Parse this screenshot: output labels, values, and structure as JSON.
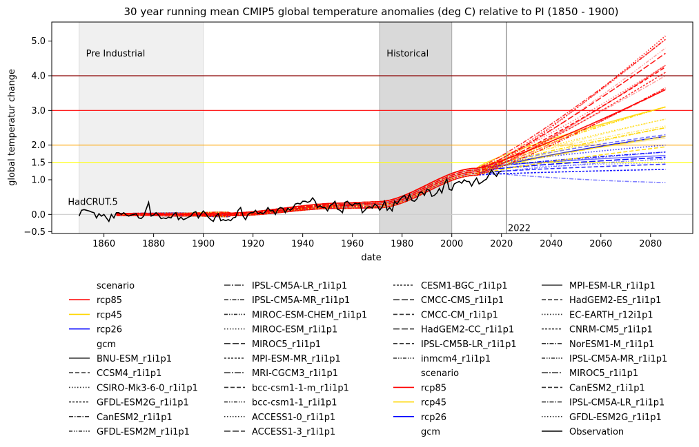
{
  "chart_data": {
    "type": "line",
    "title": "30 year running mean CMIP5 global temperature anomalies (deg C) relative to PI (1850 - 1900)",
    "xlabel": "date",
    "ylabel": "global temperatur change",
    "xlim": [
      1839,
      2097
    ],
    "ylim": [
      -0.55,
      5.55
    ],
    "xticks": [
      1860,
      1880,
      1900,
      1920,
      1940,
      1960,
      1980,
      2000,
      2020,
      2040,
      2060,
      2080
    ],
    "yticks": [
      {
        "value": -0.5,
        "label": "−0.5"
      },
      {
        "value": 0.0,
        "label": "0.0"
      },
      {
        "value": 1.0,
        "label": "1.0"
      },
      {
        "value": 1.5,
        "label": "1.5"
      },
      {
        "value": 2.0,
        "label": "2.0"
      },
      {
        "value": 3.0,
        "label": "3.0"
      },
      {
        "value": 4.0,
        "label": "4.0"
      },
      {
        "value": 5.0,
        "label": "5.0"
      }
    ],
    "grid": false,
    "shaded_periods": [
      {
        "label": "Pre Industrial",
        "start": 1850,
        "end": 1900,
        "color": "#f0f0f0"
      },
      {
        "label": "Historical",
        "start": 1971,
        "end": 2000,
        "color": "#d9d9d9"
      }
    ],
    "reference_lines": [
      {
        "value": 4.0,
        "color": "#8b0000"
      },
      {
        "value": 3.0,
        "color": "#ff0000"
      },
      {
        "value": 2.0,
        "color": "#ffa500"
      },
      {
        "value": 1.5,
        "color": "#ffff00"
      },
      {
        "value": 0.0,
        "color": "#cccccc"
      }
    ],
    "year_marker": {
      "year": 2022,
      "label": "2022",
      "color": "#ff0000"
    },
    "observation_label": "HadCRUT.5",
    "colors": {
      "rcp85": "#ff0000",
      "rcp45": "#ffd700",
      "rcp26": "#0000ff",
      "observation": "#000000"
    },
    "scenario_endpoints": {
      "x_start": 1865,
      "x_end": 2086,
      "rcp85": [
        5.25,
        5.05,
        4.95,
        4.85,
        4.6,
        4.4,
        4.25,
        4.2,
        4.15,
        3.95,
        3.75,
        3.6,
        3.5
      ],
      "rcp45": [
        3.2,
        3.1,
        3.0,
        2.8,
        2.7,
        2.6,
        2.5,
        2.45,
        2.3,
        2.15,
        2.05
      ],
      "rcp26": [
        2.35,
        2.3,
        1.9,
        1.85,
        1.75,
        1.7,
        1.65,
        1.6,
        1.5,
        1.45,
        1.4,
        0.92
      ]
    },
    "observation": [
      [
        1850,
        -0.05
      ],
      [
        1851,
        0.12
      ],
      [
        1852,
        0.14
      ],
      [
        1853,
        0.12
      ],
      [
        1854,
        0.1
      ],
      [
        1855,
        0.07
      ],
      [
        1856,
        0.05
      ],
      [
        1857,
        -0.1
      ],
      [
        1858,
        0.02
      ],
      [
        1859,
        -0.05
      ],
      [
        1860,
        0.0
      ],
      [
        1861,
        -0.1
      ],
      [
        1862,
        -0.2
      ],
      [
        1863,
        0.0
      ],
      [
        1864,
        -0.1
      ],
      [
        1865,
        0.05
      ],
      [
        1866,
        0.05
      ],
      [
        1867,
        0.0
      ],
      [
        1868,
        0.05
      ],
      [
        1869,
        -0.02
      ],
      [
        1870,
        -0.05
      ],
      [
        1871,
        -0.02
      ],
      [
        1872,
        0.0
      ],
      [
        1873,
        0.02
      ],
      [
        1874,
        -0.1
      ],
      [
        1875,
        -0.12
      ],
      [
        1876,
        -0.05
      ],
      [
        1877,
        0.15
      ],
      [
        1878,
        0.35
      ],
      [
        1879,
        -0.05
      ],
      [
        1880,
        -0.02
      ],
      [
        1881,
        0.05
      ],
      [
        1882,
        -0.02
      ],
      [
        1883,
        -0.12
      ],
      [
        1884,
        -0.1
      ],
      [
        1885,
        -0.12
      ],
      [
        1886,
        -0.08
      ],
      [
        1887,
        -0.1
      ],
      [
        1888,
        0.0
      ],
      [
        1889,
        0.05
      ],
      [
        1890,
        -0.15
      ],
      [
        1891,
        -0.08
      ],
      [
        1892,
        -0.15
      ],
      [
        1893,
        -0.12
      ],
      [
        1894,
        -0.08
      ],
      [
        1895,
        -0.05
      ],
      [
        1896,
        0.05
      ],
      [
        1897,
        0.08
      ],
      [
        1898,
        -0.1
      ],
      [
        1899,
        0.0
      ],
      [
        1900,
        0.1
      ],
      [
        1901,
        0.02
      ],
      [
        1902,
        -0.08
      ],
      [
        1903,
        -0.15
      ],
      [
        1904,
        -0.2
      ],
      [
        1905,
        -0.05
      ],
      [
        1906,
        0.02
      ],
      [
        1907,
        -0.18
      ],
      [
        1908,
        -0.15
      ],
      [
        1909,
        -0.18
      ],
      [
        1910,
        -0.15
      ],
      [
        1911,
        -0.18
      ],
      [
        1912,
        -0.1
      ],
      [
        1913,
        -0.08
      ],
      [
        1914,
        0.12
      ],
      [
        1915,
        0.2
      ],
      [
        1916,
        -0.05
      ],
      [
        1917,
        -0.15
      ],
      [
        1918,
        0.0
      ],
      [
        1919,
        0.05
      ],
      [
        1920,
        0.05
      ],
      [
        1921,
        0.12
      ],
      [
        1922,
        0.02
      ],
      [
        1923,
        0.05
      ],
      [
        1924,
        0.02
      ],
      [
        1925,
        0.08
      ],
      [
        1926,
        0.2
      ],
      [
        1927,
        0.1
      ],
      [
        1928,
        0.12
      ],
      [
        1929,
        0.0
      ],
      [
        1930,
        0.15
      ],
      [
        1931,
        0.2
      ],
      [
        1932,
        0.18
      ],
      [
        1933,
        0.05
      ],
      [
        1934,
        0.18
      ],
      [
        1935,
        0.12
      ],
      [
        1936,
        0.18
      ],
      [
        1937,
        0.3
      ],
      [
        1938,
        0.32
      ],
      [
        1939,
        0.3
      ],
      [
        1940,
        0.38
      ],
      [
        1941,
        0.38
      ],
      [
        1942,
        0.35
      ],
      [
        1943,
        0.38
      ],
      [
        1944,
        0.48
      ],
      [
        1945,
        0.38
      ],
      [
        1946,
        0.2
      ],
      [
        1947,
        0.25
      ],
      [
        1948,
        0.2
      ],
      [
        1949,
        0.2
      ],
      [
        1950,
        0.1
      ],
      [
        1951,
        0.25
      ],
      [
        1952,
        0.3
      ],
      [
        1953,
        0.38
      ],
      [
        1954,
        0.15
      ],
      [
        1955,
        0.12
      ],
      [
        1956,
        0.05
      ],
      [
        1957,
        0.35
      ],
      [
        1958,
        0.38
      ],
      [
        1959,
        0.3
      ],
      [
        1960,
        0.25
      ],
      [
        1961,
        0.32
      ],
      [
        1962,
        0.3
      ],
      [
        1963,
        0.32
      ],
      [
        1964,
        0.05
      ],
      [
        1965,
        0.12
      ],
      [
        1966,
        0.2
      ],
      [
        1967,
        0.22
      ],
      [
        1968,
        0.18
      ],
      [
        1969,
        0.3
      ],
      [
        1970,
        0.25
      ],
      [
        1971,
        0.12
      ],
      [
        1972,
        0.22
      ],
      [
        1973,
        0.38
      ],
      [
        1974,
        0.12
      ],
      [
        1975,
        0.2
      ],
      [
        1976,
        0.1
      ],
      [
        1977,
        0.38
      ],
      [
        1978,
        0.3
      ],
      [
        1979,
        0.42
      ],
      [
        1980,
        0.5
      ],
      [
        1981,
        0.55
      ],
      [
        1982,
        0.4
      ],
      [
        1983,
        0.58
      ],
      [
        1984,
        0.4
      ],
      [
        1985,
        0.38
      ],
      [
        1986,
        0.45
      ],
      [
        1987,
        0.62
      ],
      [
        1988,
        0.65
      ],
      [
        1989,
        0.55
      ],
      [
        1990,
        0.72
      ],
      [
        1991,
        0.7
      ],
      [
        1992,
        0.52
      ],
      [
        1993,
        0.55
      ],
      [
        1994,
        0.62
      ],
      [
        1995,
        0.75
      ],
      [
        1996,
        0.62
      ],
      [
        1997,
        0.88
      ],
      [
        1998,
        1.02
      ],
      [
        1999,
        0.72
      ],
      [
        2000,
        0.7
      ],
      [
        2001,
        0.88
      ],
      [
        2002,
        0.92
      ],
      [
        2003,
        0.95
      ],
      [
        2004,
        0.9
      ],
      [
        2005,
        1.0
      ],
      [
        2006,
        0.95
      ],
      [
        2007,
        0.95
      ],
      [
        2008,
        0.82
      ],
      [
        2009,
        0.95
      ],
      [
        2010,
        1.05
      ],
      [
        2011,
        0.88
      ],
      [
        2012,
        0.92
      ],
      [
        2013,
        0.98
      ],
      [
        2014,
        1.02
      ],
      [
        2015,
        1.15
      ],
      [
        2016,
        1.28
      ],
      [
        2017,
        1.18
      ],
      [
        2018,
        1.1
      ],
      [
        2019,
        1.22
      ],
      [
        2020,
        1.25
      ]
    ],
    "legend": {
      "placement": "below",
      "columns": [
        [
          {
            "label": "scenario",
            "header": true
          },
          {
            "label": "rcp85",
            "color": "#ff0000",
            "dash": "solid"
          },
          {
            "label": "rcp45",
            "color": "#ffd700",
            "dash": "solid"
          },
          {
            "label": "rcp26",
            "color": "#0000ff",
            "dash": "solid"
          },
          {
            "label": "gcm",
            "header": true
          },
          {
            "label": "BNU-ESM_r1i1p1",
            "color": "#333333",
            "dash": "solid"
          },
          {
            "label": "CCSM4_r1i1p1",
            "color": "#333333",
            "dash": "dashed"
          },
          {
            "label": "CSIRO-Mk3-6-0_r1i1p1",
            "color": "#333333",
            "dash": "dotted"
          },
          {
            "label": "GFDL-ESM2G_r1i1p1",
            "color": "#333333",
            "dash": "short"
          },
          {
            "label": "CanESM2_r1i1p1",
            "color": "#333333",
            "dash": "dashdot"
          },
          {
            "label": "GFDL-ESM2M_r1i1p1",
            "color": "#333333",
            "dash": "dashdotdot"
          }
        ],
        [
          {
            "label": "IPSL-CM5A-LR_r1i1p1",
            "color": "#333333",
            "dash": "longdashdot"
          },
          {
            "label": "IPSL-CM5A-MR_r1i1p1",
            "color": "#333333",
            "dash": "dashdot"
          },
          {
            "label": "MIROC-ESM-CHEM_r1i1p1",
            "color": "#333333",
            "dash": "dashdotdot"
          },
          {
            "label": "MIROC-ESM_r1i1p1",
            "color": "#333333",
            "dash": "dotted"
          },
          {
            "label": "MIROC5_r1i1p1",
            "color": "#333333",
            "dash": "long"
          },
          {
            "label": "MPI-ESM-MR_r1i1p1",
            "color": "#333333",
            "dash": "short"
          },
          {
            "label": "MRI-CGCM3_r1i1p1",
            "color": "#333333",
            "dash": "longdashdot"
          },
          {
            "label": "bcc-csm1-1-m_r1i1p1",
            "color": "#333333",
            "dash": "dashed"
          },
          {
            "label": "bcc-csm1-1_r1i1p1",
            "color": "#333333",
            "dash": "dashdotdot"
          },
          {
            "label": "ACCESS1-0_r1i1p1",
            "color": "#333333",
            "dash": "dotted"
          },
          {
            "label": "ACCESS1-3_r1i1p1",
            "color": "#333333",
            "dash": "long"
          }
        ],
        [
          {
            "label": "CESM1-BGC_r1i1p1",
            "color": "#333333",
            "dash": "short"
          },
          {
            "label": "CMCC-CMS_r1i1p1",
            "color": "#333333",
            "dash": "long"
          },
          {
            "label": "CMCC-CM_r1i1p1",
            "color": "#333333",
            "dash": "dashed"
          },
          {
            "label": "HadGEM2-CC_r1i1p1",
            "color": "#333333",
            "dash": "long"
          },
          {
            "label": "IPSL-CM5B-LR_r1i1p1",
            "color": "#333333",
            "dash": "dashed"
          },
          {
            "label": "inmcm4_r1i1p1",
            "color": "#333333",
            "dash": "dashdotdot"
          },
          {
            "label": "scenario",
            "header": true
          },
          {
            "label": "rcp85",
            "color": "#ff0000",
            "dash": "solid"
          },
          {
            "label": "rcp45",
            "color": "#ffd700",
            "dash": "solid"
          },
          {
            "label": "rcp26",
            "color": "#0000ff",
            "dash": "solid"
          },
          {
            "label": "gcm",
            "header": true
          }
        ],
        [
          {
            "label": "MPI-ESM-LR_r1i1p1",
            "color": "#333333",
            "dash": "solid"
          },
          {
            "label": "HadGEM2-ES_r1i1p1",
            "color": "#333333",
            "dash": "dashed"
          },
          {
            "label": "EC-EARTH_r12i1p1",
            "color": "#333333",
            "dash": "dotted"
          },
          {
            "label": "CNRM-CM5_r1i1p1",
            "color": "#333333",
            "dash": "short"
          },
          {
            "label": "NorESM1-M_r1i1p1",
            "color": "#333333",
            "dash": "dashdot"
          },
          {
            "label": "IPSL-CM5A-MR_r1i1p1",
            "color": "#333333",
            "dash": "dashdotdot"
          },
          {
            "label": "MIROC5_r1i1p1",
            "color": "#333333",
            "dash": "longdashdot"
          },
          {
            "label": "CanESM2_r1i1p1",
            "color": "#333333",
            "dash": "dashed"
          },
          {
            "label": "IPSL-CM5A-LR_r1i1p1",
            "color": "#333333",
            "dash": "dashdot"
          },
          {
            "label": "GFDL-ESM2G_r1i1p1",
            "color": "#333333",
            "dash": "dotted"
          },
          {
            "label": "Observation",
            "color": "#000000",
            "dash": "solid"
          }
        ]
      ]
    }
  }
}
